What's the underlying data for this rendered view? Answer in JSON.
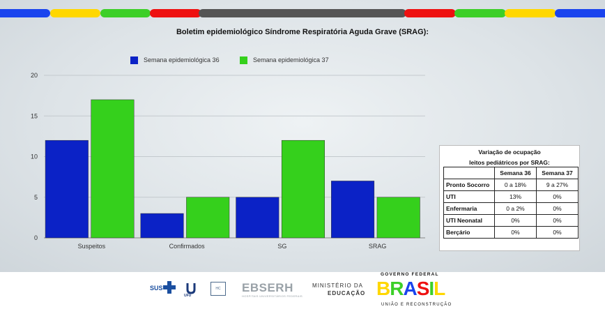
{
  "chart_data": {
    "type": "bar",
    "title": "Boletim epidemiológico Síndrome Respiratória Aguda Grave (SRAG):",
    "categories": [
      "Suspeitos",
      "Confirmados",
      "SG",
      "SRAG"
    ],
    "series": [
      {
        "name": "Semana epidemiológica 36",
        "values": [
          12,
          3,
          5,
          7
        ],
        "color": "#0b22c6"
      },
      {
        "name": "Semana epidemiológica 37",
        "values": [
          17,
          5,
          12,
          5
        ],
        "color": "#35d01c"
      }
    ],
    "ylim": [
      0,
      20
    ],
    "yticks": [
      0,
      5,
      10,
      15,
      20
    ],
    "grid": true,
    "legend": "top",
    "xlabel": "",
    "ylabel": ""
  },
  "occupancy_table": {
    "caption_line1": "Variação de ocupação",
    "caption_line2": "leitos pediátricos por SRAG:",
    "headers": [
      "",
      "Semana 36",
      "Semana 37"
    ],
    "rows": [
      {
        "label": "Pronto Socorro",
        "w36": "0 a 18%",
        "w37": "9 a 27%"
      },
      {
        "label": "UTI",
        "w36": "13%",
        "w37": "0%"
      },
      {
        "label": "Enfermaria",
        "w36": "0 a 2%",
        "w37": "0%"
      },
      {
        "label": "UTI Neonatal",
        "w36": "0%",
        "w37": "0%"
      },
      {
        "label": "Berçário",
        "w36": "0%",
        "w37": "0%"
      }
    ]
  },
  "footer": {
    "sus": "SUS",
    "ufu": "UFU",
    "ebserh": "EBSERH",
    "ebserh_sub": "HOSPITAIS UNIVERSITÁRIOS FEDERAIS",
    "ministerio": "MINISTÉRIO DA",
    "educacao": "EDUCAÇÃO",
    "governo": "GOVERNO FEDERAL",
    "brasil": "BRASIL",
    "uniao": "UNIÃO E RECONSTRUÇÃO"
  },
  "colors": {
    "blue": "#0b22c6",
    "green": "#35d01c",
    "yellow": "#ffd700",
    "red": "#ee1111",
    "dark": "#555555",
    "stripe_blue": "#1a44ee"
  }
}
